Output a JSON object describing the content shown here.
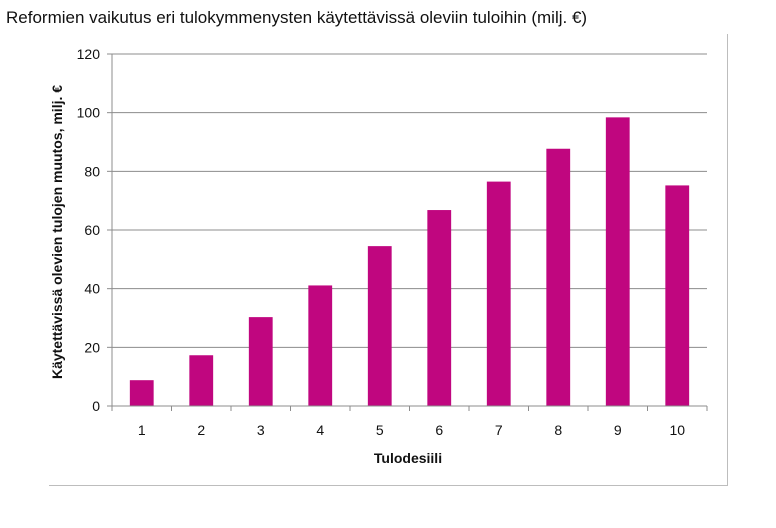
{
  "title": "Reformien vaikutus eri tulokymmenysten käytettävissä oleviin tuloihin (milj. €)",
  "chart_data": {
    "type": "bar",
    "title": "Reformien vaikutus eri tulokymmenysten käytettävissä oleviin tuloihin (milj. €)",
    "xlabel": "Tulodesiili",
    "ylabel": "Käytettävissä olevien tulojen muutos, milj. €",
    "categories": [
      "1",
      "2",
      "3",
      "4",
      "5",
      "6",
      "7",
      "8",
      "9",
      "10"
    ],
    "values": [
      8.8,
      17.3,
      30.3,
      41.1,
      54.5,
      66.8,
      76.5,
      87.7,
      98.4,
      75.2
    ],
    "ylim": [
      0,
      120
    ],
    "yticks": [
      "0",
      "20",
      "40",
      "60",
      "80",
      "100",
      "120"
    ],
    "grid": true,
    "bar_color": "#c0067f"
  }
}
